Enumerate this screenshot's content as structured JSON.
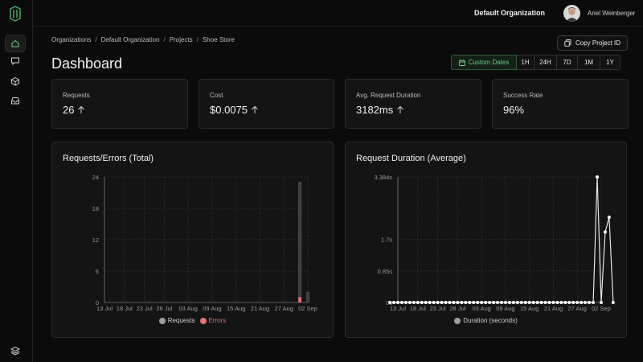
{
  "header": {
    "org_name": "Default Organization",
    "user_name": "Ariel Weinberger"
  },
  "breadcrumb": [
    "Organizations",
    "Default Organization",
    "Projects",
    "Shoe Store"
  ],
  "copy_button": {
    "label": "Copy Project ID"
  },
  "page_title": "Dashboard",
  "date_range": {
    "custom_label": "Custom Dates",
    "options": [
      "1H",
      "24H",
      "7D",
      "1M",
      "1Y"
    ],
    "selected": "Custom Dates",
    "accent": "#6fcf86"
  },
  "stats": [
    {
      "label": "Requests",
      "value": "26",
      "trend_icon": "arrow-up-icon"
    },
    {
      "label": "Cost",
      "value": "$0.0075",
      "trend_icon": "arrow-up-icon"
    },
    {
      "label": "Avg. Request Duration",
      "value": "3182ms",
      "trend_icon": "arrow-up-icon"
    },
    {
      "label": "Success Rate",
      "value": "96%"
    }
  ],
  "sidebar": {
    "items": [
      {
        "icon": "home-icon",
        "active": true
      },
      {
        "icon": "chat-icon"
      },
      {
        "icon": "cube-icon"
      },
      {
        "icon": "inbox-icon"
      }
    ],
    "bottom_icon": "layers-icon"
  },
  "chart_data": [
    {
      "type": "bar",
      "title": "Requests/Errors (Total)",
      "x_tick_labels": [
        "13 Jul",
        "18 Jul",
        "23 Jul",
        "28 Jul",
        "03 Aug",
        "09 Aug",
        "15 Aug",
        "21 Aug",
        "27 Aug",
        "02 Sep"
      ],
      "y_tick_labels": [
        "0",
        "6",
        "12",
        "18",
        "24"
      ],
      "ylim": [
        0,
        24
      ],
      "grid": true,
      "legend_position": "bottom",
      "series": [
        {
          "name": "Requests",
          "color": "#9e9e9e",
          "points": [
            {
              "x": "31 Aug",
              "y": 23
            },
            {
              "x": "02 Sep",
              "y": 2
            }
          ]
        },
        {
          "name": "Errors",
          "color": "#e57373",
          "points": [
            {
              "x": "31 Aug",
              "y": 1
            }
          ]
        }
      ]
    },
    {
      "type": "line",
      "title": "Request Duration (Average)",
      "x_tick_labels": [
        "13 Jul",
        "18 Jul",
        "23 Jul",
        "28 Jul",
        "03 Aug",
        "09 Aug",
        "15 Aug",
        "21 Aug",
        "27 Aug",
        "02 Sep"
      ],
      "y_tick_labels": [
        "0s",
        "0.85s",
        "1.7s",
        "3.384s"
      ],
      "y_tick_values": [
        0,
        0.85,
        1.7,
        3.384
      ],
      "ylim": [
        0,
        3.384
      ],
      "grid": true,
      "legend_position": "bottom",
      "series": [
        {
          "name": "Duration (seconds)",
          "color": "#e6e6e6",
          "x_start": "11 Jul",
          "values": [
            0,
            0,
            0,
            0,
            0,
            0,
            0,
            0,
            0,
            0,
            0,
            0,
            0,
            0,
            0,
            0,
            0,
            0,
            0,
            0,
            0,
            0,
            0,
            0,
            0,
            0,
            0,
            0,
            0,
            0,
            0,
            0,
            0,
            0,
            0,
            0,
            0,
            0,
            0,
            0,
            0,
            0,
            0,
            0,
            0,
            0,
            0,
            0,
            0,
            0,
            0,
            0,
            3.384,
            0,
            1.9,
            2.3,
            0
          ]
        }
      ]
    }
  ]
}
